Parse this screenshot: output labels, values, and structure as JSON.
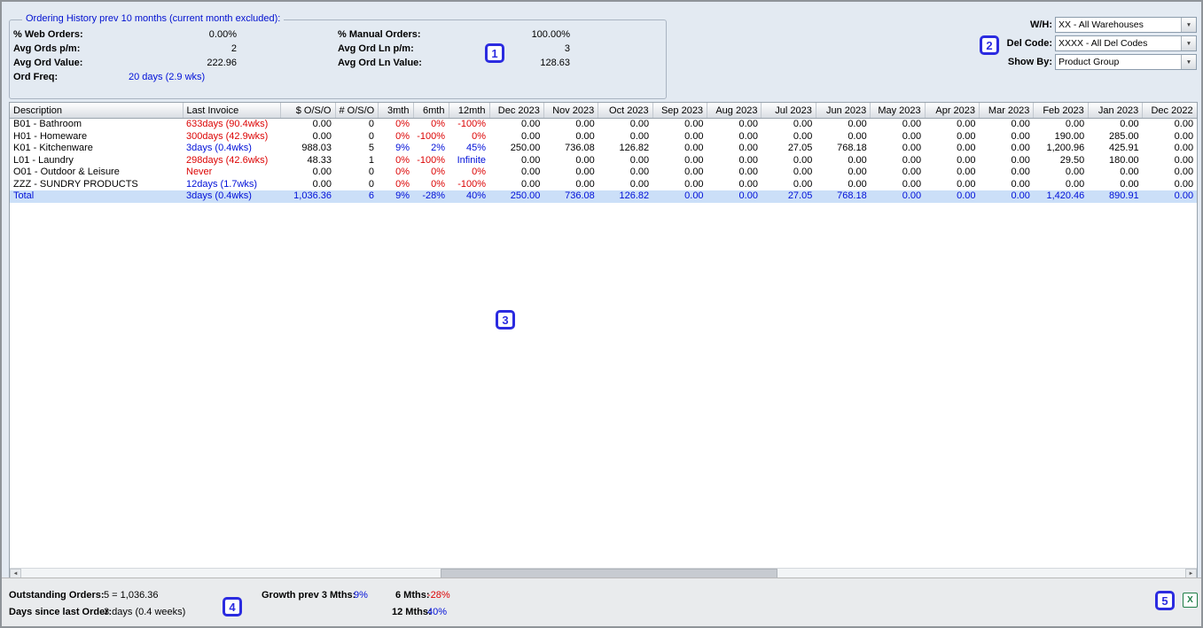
{
  "ordering_history": {
    "legend": "Ordering History prev 10 months (current month excluded):",
    "left": [
      {
        "label": "% Web Orders:",
        "value": "0.00%"
      },
      {
        "label": "Avg Ords p/m:",
        "value": "2"
      },
      {
        "label": "Avg Ord Value:",
        "value": "222.96"
      },
      {
        "label": "Ord Freq:",
        "value": "20 days (2.9 wks)"
      }
    ],
    "right": [
      {
        "label": "% Manual Orders:",
        "value": "100.00%"
      },
      {
        "label": "Avg Ord Ln p/m:",
        "value": "3"
      },
      {
        "label": "Avg Ord Ln Value:",
        "value": "128.63"
      }
    ]
  },
  "filters": {
    "warehouse": {
      "label": "W/H:",
      "value": "XX - All Warehouses"
    },
    "del_code": {
      "label": "Del Code:",
      "value": "XXXX - All Del Codes"
    },
    "show_by": {
      "label": "Show By:",
      "value": "Product Group"
    }
  },
  "table": {
    "columns": [
      "Description",
      "Last Invoice",
      "$ O/S/O",
      "# O/S/O",
      "3mth",
      "6mth",
      "12mth",
      "Dec 2023",
      "Nov 2023",
      "Oct 2023",
      "Sep 2023",
      "Aug 2023",
      "Jul 2023",
      "Jun 2023",
      "May 2023",
      "Apr 2023",
      "Mar 2023",
      "Feb 2023",
      "Jan 2023",
      "Dec 2022"
    ],
    "rows": [
      {
        "cells": [
          "B01 - Bathroom",
          "633days (90.4wks)",
          "0.00",
          "0",
          "0%",
          "0%",
          "-100%",
          "0.00",
          "0.00",
          "0.00",
          "0.00",
          "0.00",
          "0.00",
          "0.00",
          "0.00",
          "0.00",
          "0.00",
          "0.00",
          "0.00",
          "0.00"
        ],
        "cell_colors": {
          "1": "red",
          "4": "red",
          "5": "red",
          "6": "red"
        }
      },
      {
        "cells": [
          "H01 - Homeware",
          "300days (42.9wks)",
          "0.00",
          "0",
          "0%",
          "-100%",
          "0%",
          "0.00",
          "0.00",
          "0.00",
          "0.00",
          "0.00",
          "0.00",
          "0.00",
          "0.00",
          "0.00",
          "0.00",
          "190.00",
          "285.00",
          "0.00"
        ],
        "cell_colors": {
          "1": "red",
          "4": "red",
          "5": "red",
          "6": "red"
        }
      },
      {
        "cells": [
          "K01 - Kitchenware",
          "3days (0.4wks)",
          "988.03",
          "5",
          "9%",
          "2%",
          "45%",
          "250.00",
          "736.08",
          "126.82",
          "0.00",
          "0.00",
          "27.05",
          "768.18",
          "0.00",
          "0.00",
          "0.00",
          "1,200.96",
          "425.91",
          "0.00"
        ],
        "cell_colors": {
          "1": "blue",
          "4": "blue",
          "5": "blue",
          "6": "blue"
        }
      },
      {
        "cells": [
          "L01 - Laundry",
          "298days (42.6wks)",
          "48.33",
          "1",
          "0%",
          "-100%",
          "Infinite",
          "0.00",
          "0.00",
          "0.00",
          "0.00",
          "0.00",
          "0.00",
          "0.00",
          "0.00",
          "0.00",
          "0.00",
          "29.50",
          "180.00",
          "0.00"
        ],
        "cell_colors": {
          "1": "red",
          "4": "red",
          "5": "red",
          "6": "blue"
        }
      },
      {
        "cells": [
          "O01 - Outdoor & Leisure",
          "Never",
          "0.00",
          "0",
          "0%",
          "0%",
          "0%",
          "0.00",
          "0.00",
          "0.00",
          "0.00",
          "0.00",
          "0.00",
          "0.00",
          "0.00",
          "0.00",
          "0.00",
          "0.00",
          "0.00",
          "0.00"
        ],
        "cell_colors": {
          "1": "red",
          "4": "red",
          "5": "red",
          "6": "red"
        }
      },
      {
        "cells": [
          "ZZZ - SUNDRY PRODUCTS",
          "12days (1.7wks)",
          "0.00",
          "0",
          "0%",
          "0%",
          "-100%",
          "0.00",
          "0.00",
          "0.00",
          "0.00",
          "0.00",
          "0.00",
          "0.00",
          "0.00",
          "0.00",
          "0.00",
          "0.00",
          "0.00",
          "0.00"
        ],
        "cell_colors": {
          "1": "blue",
          "4": "red",
          "5": "red",
          "6": "red"
        }
      },
      {
        "total": true,
        "cells": [
          "Total",
          "3days (0.4wks)",
          "1,036.36",
          "6",
          "9%",
          "-28%",
          "40%",
          "250.00",
          "736.08",
          "126.82",
          "0.00",
          "0.00",
          "27.05",
          "768.18",
          "0.00",
          "0.00",
          "0.00",
          "1,420.46",
          "890.91",
          "0.00"
        ]
      }
    ]
  },
  "footer": {
    "outstanding_orders": {
      "label": "Outstanding Orders:",
      "value": "5 = 1,036.36"
    },
    "days_since_last": {
      "label": "Days since last Order:",
      "value": "3 days (0.4 weeks)"
    },
    "growth_3m": {
      "label": "Growth prev 3 Mths:",
      "value": "9%"
    },
    "growth_6m": {
      "label": "6 Mths:",
      "value": "-28%"
    },
    "growth_12m": {
      "label": "12 Mths:",
      "value": "40%"
    }
  },
  "annotations": [
    "1",
    "2",
    "3",
    "4",
    "5"
  ],
  "icons": {
    "dropdown_arrow": "▼",
    "scroll_left": "◄",
    "scroll_right": "►",
    "excel_export_letter": "X"
  },
  "colors": {
    "positive_blue": "#0010d8",
    "negative_red": "#dc0404",
    "total_row_bg": "#cbdff8",
    "annotation_blue": "#2b2be0",
    "excel_green": "#1e7e46"
  }
}
